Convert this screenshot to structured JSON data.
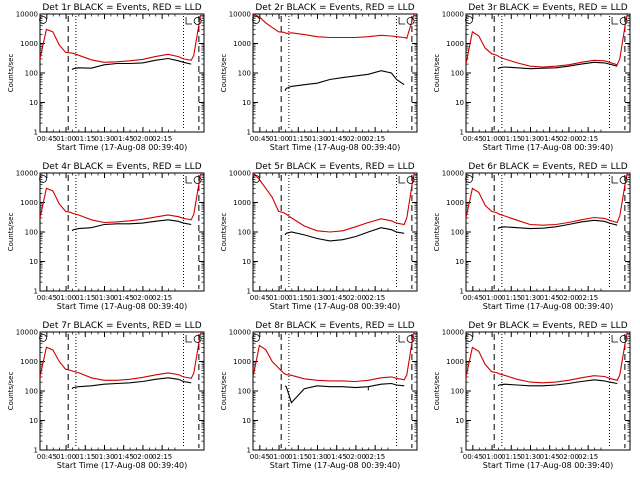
{
  "chart_data": [
    {
      "type": "line",
      "title": "Det 1r BLACK = Events, RED = LLD",
      "xlabel": "Start Time (17-Aug-08 00:39:40)",
      "ylabel": "Counts/sec",
      "yscale": "log",
      "ylim": [
        1,
        10000
      ],
      "yticks": [
        "1",
        "10",
        "100",
        "1000",
        "10000"
      ],
      "xticks": [
        "00:45",
        "01:00",
        "01:15",
        "01:30",
        "01:45",
        "02:00",
        "02:15"
      ],
      "x_minutes": [
        0,
        5,
        10,
        15,
        20,
        24,
        25,
        26,
        30,
        40,
        50,
        60,
        70,
        80,
        90,
        100,
        108,
        112,
        118,
        120,
        125,
        126
      ],
      "series": [
        {
          "name": "Events",
          "color": "#000000",
          "values": [
            null,
            null,
            null,
            null,
            null,
            null,
            130,
            140,
            150,
            145,
            190,
            210,
            210,
            220,
            270,
            310,
            260,
            230,
            200,
            null,
            null,
            null
          ],
          "gaps": [
            19,
            20
          ]
        },
        {
          "name": "LLD",
          "color": "#d00000",
          "values": [
            300,
            3000,
            2500,
            900,
            500,
            480,
            470,
            460,
            400,
            280,
            230,
            240,
            260,
            290,
            360,
            430,
            360,
            300,
            270,
            400,
            8000,
            10000
          ]
        }
      ],
      "markers": {
        "dashed_x": [
          22,
          124
        ],
        "dotted_x": [
          28,
          112
        ]
      }
    },
    {
      "type": "line",
      "title": "Det 2r BLACK = Events, RED = LLD",
      "xlabel": "Start Time (17-Aug-08 00:39:40)",
      "ylabel": "Counts/sec",
      "yscale": "log",
      "ylim": [
        1,
        10000
      ],
      "yticks": [
        "1",
        "10",
        "100",
        "1000",
        "10000"
      ],
      "xticks": [
        "00:45",
        "01:00",
        "01:15",
        "01:30",
        "01:45",
        "02:00",
        "02:15"
      ],
      "x_minutes": [
        0,
        5,
        10,
        15,
        20,
        24,
        25,
        26,
        30,
        40,
        50,
        60,
        70,
        80,
        90,
        100,
        108,
        112,
        118,
        120,
        125,
        126
      ],
      "series": [
        {
          "name": "Events",
          "color": "#000000",
          "values": [
            null,
            null,
            null,
            null,
            null,
            null,
            25,
            30,
            35,
            40,
            45,
            60,
            70,
            80,
            90,
            120,
            100,
            60,
            40,
            null,
            null,
            null
          ],
          "gaps": [
            9,
            10
          ]
        },
        {
          "name": "LLD",
          "color": "#d00000",
          "values": [
            10000,
            8000,
            5000,
            3500,
            2500,
            2400,
            2300,
            2200,
            2300,
            2000,
            1700,
            1600,
            1600,
            1600,
            1700,
            1900,
            1800,
            1700,
            1600,
            1500,
            8000,
            10000
          ]
        }
      ],
      "markers": {
        "dashed_x": [
          22,
          124
        ],
        "dotted_x": [
          28,
          112
        ]
      }
    },
    {
      "type": "line",
      "title": "Det 3r BLACK = Events, RED = LLD",
      "xlabel": "Start Time (17-Aug-08 00:39:40)",
      "ylabel": "Counts/sec",
      "yscale": "log",
      "ylim": [
        1,
        10000
      ],
      "yticks": [
        "1",
        "10",
        "100",
        "1000",
        "10000"
      ],
      "xticks": [
        "00:45",
        "01:00",
        "01:15",
        "01:30",
        "01:45",
        "02:00",
        "02:15"
      ],
      "x_minutes": [
        0,
        5,
        10,
        15,
        20,
        24,
        25,
        26,
        30,
        40,
        50,
        60,
        70,
        80,
        90,
        100,
        108,
        112,
        118,
        120,
        125,
        126
      ],
      "series": [
        {
          "name": "Events",
          "color": "#000000",
          "values": [
            null,
            null,
            null,
            null,
            null,
            null,
            140,
            150,
            160,
            150,
            140,
            145,
            150,
            170,
            200,
            230,
            220,
            200,
            170,
            null,
            null,
            null
          ]
        },
        {
          "name": "LLD",
          "color": "#d00000",
          "values": [
            200,
            2500,
            1800,
            700,
            450,
            400,
            380,
            350,
            300,
            220,
            170,
            160,
            170,
            190,
            230,
            270,
            260,
            230,
            190,
            300,
            7000,
            10000
          ]
        }
      ],
      "markers": {
        "dashed_x": [
          22,
          124
        ],
        "dotted_x": [
          28,
          112
        ]
      }
    },
    {
      "type": "line",
      "title": "Det 4r BLACK = Events, RED = LLD",
      "xlabel": "Start Time (17-Aug-08 00:39:40)",
      "ylabel": "Counts/sec",
      "yscale": "log",
      "ylim": [
        1,
        10000
      ],
      "yticks": [
        "1",
        "10",
        "100",
        "1000",
        "10000"
      ],
      "xticks": [
        "00:45",
        "01:00",
        "01:15",
        "01:30",
        "01:45",
        "02:00",
        "02:15"
      ],
      "x_minutes": [
        0,
        5,
        10,
        15,
        20,
        24,
        25,
        26,
        30,
        40,
        50,
        60,
        70,
        80,
        90,
        100,
        108,
        112,
        118,
        120,
        125,
        126
      ],
      "series": [
        {
          "name": "Events",
          "color": "#000000",
          "values": [
            null,
            null,
            null,
            null,
            null,
            null,
            110,
            120,
            130,
            140,
            180,
            190,
            190,
            200,
            230,
            260,
            230,
            200,
            180,
            null,
            null,
            null
          ],
          "gaps": [
            19
          ]
        },
        {
          "name": "LLD",
          "color": "#d00000",
          "values": [
            300,
            3000,
            2500,
            900,
            500,
            460,
            440,
            420,
            380,
            260,
            210,
            220,
            240,
            270,
            320,
            380,
            330,
            290,
            260,
            400,
            8000,
            10000
          ]
        }
      ],
      "markers": {
        "dashed_x": [
          22,
          124
        ],
        "dotted_x": [
          28,
          112
        ]
      }
    },
    {
      "type": "line",
      "title": "Det 5r BLACK = Events, RED = LLD",
      "xlabel": "Start Time (17-Aug-08 00:39:40)",
      "ylabel": "Counts/sec",
      "yscale": "log",
      "ylim": [
        1,
        10000
      ],
      "yticks": [
        "1",
        "10",
        "100",
        "1000",
        "10000"
      ],
      "xticks": [
        "00:45",
        "01:00",
        "01:15",
        "01:30",
        "01:45",
        "02:00",
        "02:15"
      ],
      "x_minutes": [
        0,
        5,
        10,
        15,
        20,
        24,
        25,
        26,
        30,
        40,
        50,
        60,
        70,
        80,
        90,
        100,
        108,
        112,
        118,
        120,
        125,
        126
      ],
      "series": [
        {
          "name": "Events",
          "color": "#000000",
          "values": [
            null,
            null,
            null,
            null,
            null,
            null,
            80,
            90,
            100,
            80,
            60,
            50,
            55,
            70,
            100,
            140,
            120,
            100,
            90,
            null,
            null,
            null
          ]
        },
        {
          "name": "LLD",
          "color": "#d00000",
          "values": [
            10000,
            6000,
            3000,
            1500,
            500,
            450,
            420,
            400,
            300,
            160,
            110,
            100,
            110,
            150,
            210,
            280,
            240,
            200,
            180,
            300,
            7000,
            10000
          ]
        }
      ],
      "markers": {
        "dashed_x": [
          22,
          124
        ],
        "dotted_x": [
          28,
          112
        ]
      }
    },
    {
      "type": "line",
      "title": "Det 6r BLACK = Events, RED = LLD",
      "xlabel": "Start Time (17-Aug-08 00:39:40)",
      "ylabel": "Counts/sec",
      "yscale": "log",
      "ylim": [
        1,
        10000
      ],
      "yticks": [
        "1",
        "10",
        "100",
        "1000",
        "10000"
      ],
      "xticks": [
        "00:45",
        "01:00",
        "01:15",
        "01:30",
        "01:45",
        "02:00",
        "02:15"
      ],
      "x_minutes": [
        0,
        5,
        10,
        15,
        20,
        24,
        25,
        26,
        30,
        40,
        50,
        60,
        70,
        80,
        90,
        100,
        108,
        112,
        118,
        120,
        125,
        126
      ],
      "series": [
        {
          "name": "Events",
          "color": "#000000",
          "values": [
            null,
            null,
            null,
            null,
            null,
            null,
            130,
            140,
            150,
            140,
            130,
            135,
            150,
            180,
            220,
            250,
            230,
            200,
            170,
            null,
            null,
            null
          ]
        },
        {
          "name": "LLD",
          "color": "#d00000",
          "values": [
            300,
            3000,
            2200,
            800,
            500,
            450,
            420,
            400,
            350,
            250,
            180,
            170,
            180,
            210,
            260,
            310,
            290,
            250,
            210,
            350,
            7000,
            10000
          ]
        }
      ],
      "markers": {
        "dashed_x": [
          22,
          124
        ],
        "dotted_x": [
          28,
          112
        ]
      }
    },
    {
      "type": "line",
      "title": "Det 7r BLACK = Events, RED = LLD",
      "xlabel": "Start Time (17-Aug-08 00:39:40)",
      "ylabel": "Counts/sec",
      "yscale": "log",
      "ylim": [
        1,
        10000
      ],
      "yticks": [
        "1",
        "10",
        "100",
        "1000",
        "10000"
      ],
      "xticks": [
        "00:45",
        "01:00",
        "01:15",
        "01:30",
        "01:45",
        "02:00",
        "02:15"
      ],
      "x_minutes": [
        0,
        5,
        10,
        15,
        20,
        24,
        25,
        26,
        30,
        40,
        50,
        60,
        70,
        80,
        90,
        100,
        108,
        112,
        118,
        120,
        125,
        126
      ],
      "series": [
        {
          "name": "Events",
          "color": "#000000",
          "values": [
            null,
            null,
            null,
            null,
            null,
            null,
            120,
            130,
            140,
            150,
            170,
            180,
            190,
            210,
            250,
            280,
            250,
            210,
            190,
            null,
            null,
            null
          ],
          "gaps": [
            19
          ]
        },
        {
          "name": "LLD",
          "color": "#d00000",
          "values": [
            300,
            3000,
            2500,
            1000,
            550,
            500,
            480,
            460,
            420,
            280,
            230,
            230,
            250,
            290,
            350,
            410,
            360,
            300,
            270,
            400,
            8000,
            10000
          ]
        }
      ],
      "markers": {
        "dashed_x": [
          22,
          124
        ],
        "dotted_x": [
          28,
          112
        ]
      }
    },
    {
      "type": "line",
      "title": "Det 8r BLACK = Events, RED = LLD",
      "xlabel": "Start Time (17-Aug-08 00:39:40)",
      "ylabel": "Counts/sec",
      "yscale": "log",
      "ylim": [
        1,
        10000
      ],
      "yticks": [
        "1",
        "10",
        "100",
        "1000",
        "10000"
      ],
      "xticks": [
        "00:45",
        "01:00",
        "01:15",
        "01:30",
        "01:45",
        "02:00",
        "02:15"
      ],
      "x_minutes": [
        0,
        5,
        10,
        15,
        20,
        24,
        25,
        26,
        30,
        40,
        50,
        60,
        70,
        80,
        90,
        100,
        108,
        112,
        118,
        120,
        125,
        126
      ],
      "series": [
        {
          "name": "Events",
          "color": "#000000",
          "values": [
            null,
            null,
            null,
            null,
            null,
            null,
            150,
            140,
            40,
            120,
            150,
            140,
            140,
            130,
            140,
            170,
            180,
            160,
            150,
            null,
            null,
            null
          ],
          "gaps": [
            28,
            90
          ]
        },
        {
          "name": "LLD",
          "color": "#d00000",
          "values": [
            300,
            3500,
            2500,
            1000,
            600,
            400,
            380,
            360,
            340,
            260,
            230,
            220,
            220,
            210,
            230,
            280,
            300,
            270,
            240,
            350,
            8000,
            10000
          ]
        }
      ],
      "markers": {
        "dashed_x": [
          22,
          124
        ],
        "dotted_x": [
          28,
          112
        ]
      }
    },
    {
      "type": "line",
      "title": "Det 9r BLACK = Events, RED = LLD",
      "xlabel": "Start Time (17-Aug-08 00:39:40)",
      "ylabel": "Counts/sec",
      "yscale": "log",
      "ylim": [
        1,
        10000
      ],
      "yticks": [
        "1",
        "10",
        "100",
        "1000",
        "10000"
      ],
      "xticks": [
        "00:45",
        "01:00",
        "01:15",
        "01:30",
        "01:45",
        "02:00",
        "02:15"
      ],
      "x_minutes": [
        0,
        5,
        10,
        15,
        20,
        24,
        25,
        26,
        30,
        40,
        50,
        60,
        70,
        80,
        90,
        100,
        108,
        112,
        118,
        120,
        125,
        126
      ],
      "series": [
        {
          "name": "Events",
          "color": "#000000",
          "values": [
            null,
            null,
            null,
            null,
            null,
            null,
            150,
            160,
            170,
            160,
            150,
            150,
            160,
            180,
            210,
            240,
            220,
            200,
            180,
            null,
            null,
            null
          ]
        },
        {
          "name": "LLD",
          "color": "#d00000",
          "values": [
            300,
            3000,
            2200,
            800,
            450,
            420,
            400,
            380,
            340,
            250,
            200,
            190,
            200,
            230,
            280,
            330,
            310,
            270,
            230,
            350,
            7000,
            10000
          ]
        }
      ],
      "markers": {
        "dashed_x": [
          22,
          124
        ],
        "dotted_x": [
          28,
          112
        ]
      }
    }
  ]
}
